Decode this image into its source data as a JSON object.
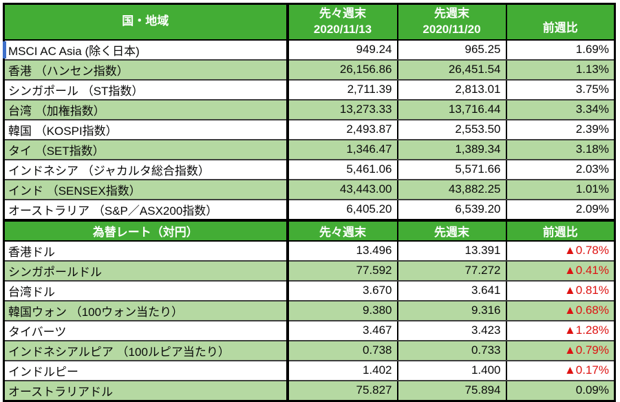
{
  "colors": {
    "header_green": "#43AD35",
    "row_light_green": "#B5D9A2",
    "negative_red": "#DE1312",
    "active_cell_blue": "#3E6FC9"
  },
  "sections": [
    {
      "header": {
        "title": "国・地域",
        "col2_line1": "先々週末",
        "col2_line2": "2020/11/13",
        "col3_line1": "先週末",
        "col3_line2": "2020/11/20",
        "col4": "前週比"
      },
      "rows": [
        {
          "label": "MSCI AC Asia (除く日本)",
          "prev2": "949.24",
          "prev": "965.25",
          "change": "1.69%"
        },
        {
          "label": "香港 （ハンセン指数）",
          "prev2": "26,156.86",
          "prev": "26,451.54",
          "change": "1.13%"
        },
        {
          "label": "シンガポール （ST指数）",
          "prev2": "2,711.39",
          "prev": "2,813.01",
          "change": "3.75%"
        },
        {
          "label": "台湾 （加権指数）",
          "prev2": "13,273.33",
          "prev": "13,716.44",
          "change": "3.34%"
        },
        {
          "label": "韓国 （KOSPI指数）",
          "prev2": "2,493.87",
          "prev": "2,553.50",
          "change": "2.39%"
        },
        {
          "label": "タイ （SET指数）",
          "prev2": "1,346.47",
          "prev": "1,389.34",
          "change": "3.18%"
        },
        {
          "label": "インドネシア （ジャカルタ総合指数）",
          "prev2": "5,461.06",
          "prev": "5,571.66",
          "change": "2.03%"
        },
        {
          "label": "インド （SENSEX指数）",
          "prev2": "43,443.00",
          "prev": "43,882.25",
          "change": "1.01%"
        },
        {
          "label": "オーストラリア （S&P／ASX200指数）",
          "prev2": "6,405.20",
          "prev": "6,539.20",
          "change": "2.09%"
        }
      ]
    },
    {
      "header": {
        "title": "為替レート（対円）",
        "col2": "先々週末",
        "col3": "先週末",
        "col4": "前週比"
      },
      "rows": [
        {
          "label": "香港ドル",
          "prev2": "13.496",
          "prev": "13.391",
          "change": "▲0.78%"
        },
        {
          "label": "シンガポールドル",
          "prev2": "77.592",
          "prev": "77.272",
          "change": "▲0.41%"
        },
        {
          "label": "台湾ドル",
          "prev2": "3.670",
          "prev": "3.641",
          "change": "▲0.81%"
        },
        {
          "label": "韓国ウォン （100ウォン当たり）",
          "prev2": "9.380",
          "prev": "9.316",
          "change": "▲0.68%"
        },
        {
          "label": "タイバーツ",
          "prev2": "3.467",
          "prev": "3.423",
          "change": "▲1.28%"
        },
        {
          "label": "インドネシアルピア （100ルピア当たり）",
          "prev2": "0.738",
          "prev": "0.733",
          "change": "▲0.79%"
        },
        {
          "label": "インドルピー",
          "prev2": "1.402",
          "prev": "1.400",
          "change": "▲0.17%"
        },
        {
          "label": "オーストラリアドル",
          "prev2": "75.827",
          "prev": "75.894",
          "change": "0.09%"
        }
      ]
    }
  ]
}
